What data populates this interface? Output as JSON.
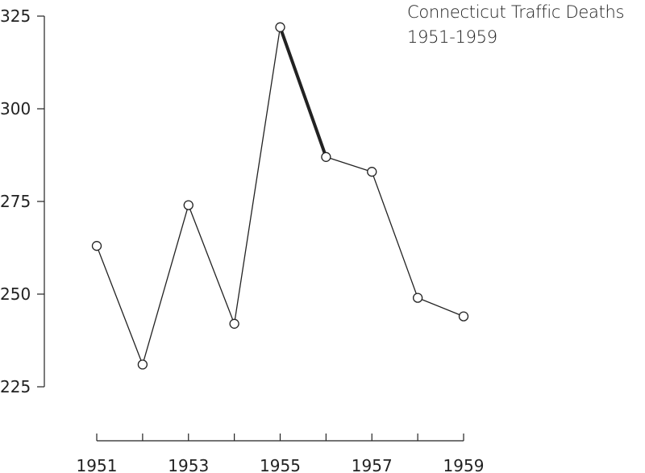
{
  "chart_data": {
    "type": "line",
    "title": "Connecticut Traffic Deaths",
    "subtitle": "1951-1959",
    "x": [
      1951,
      1952,
      1953,
      1954,
      1955,
      1956,
      1957,
      1958,
      1959
    ],
    "series": [
      {
        "values": [
          263,
          231,
          274,
          242,
          322,
          287,
          283,
          249,
          244
        ]
      }
    ],
    "highlight_segment": {
      "from": 1955,
      "to": 1956
    },
    "ylim": [
      225,
      325
    ],
    "yticks": [
      225,
      250,
      275,
      300,
      325
    ],
    "xlim": [
      1951,
      1959
    ],
    "xticks": [
      1951,
      1952,
      1953,
      1954,
      1955,
      1956,
      1957,
      1958,
      1959
    ],
    "xtick_labels": [
      "1951",
      "",
      "1953",
      "",
      "1955",
      "",
      "1957",
      "",
      "1959"
    ],
    "grid": false,
    "colors": {
      "line": "#222222",
      "marker_fill": "#ffffff",
      "highlight": "#222222"
    }
  }
}
